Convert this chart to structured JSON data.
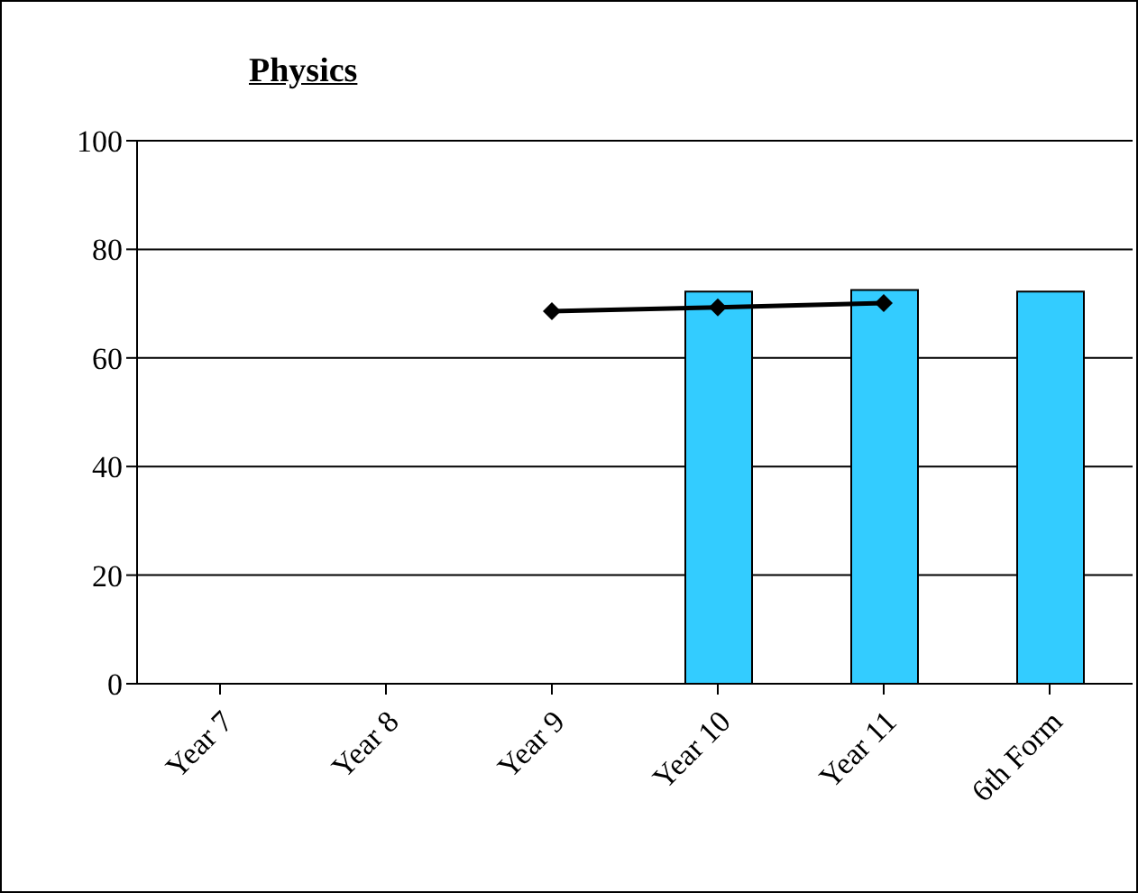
{
  "chart_data": {
    "type": "bar",
    "title": "Physics",
    "categories": [
      "Year 7",
      "Year 8",
      "Year 9",
      "Year 10",
      "Year 11",
      "6th Form"
    ],
    "series": [
      {
        "color": "#33ccff",
        "values": [
          null,
          null,
          null,
          72.2,
          72.5,
          72.2
        ]
      },
      {
        "type": "line",
        "color": "#000000",
        "values": [
          null,
          null,
          68.6,
          69.3,
          70.1,
          null
        ]
      }
    ],
    "ylim": [
      0,
      100
    ],
    "yticks": [
      0,
      20,
      40,
      60,
      80,
      100
    ],
    "grid": "y",
    "marker": "diamond",
    "legend": false
  }
}
